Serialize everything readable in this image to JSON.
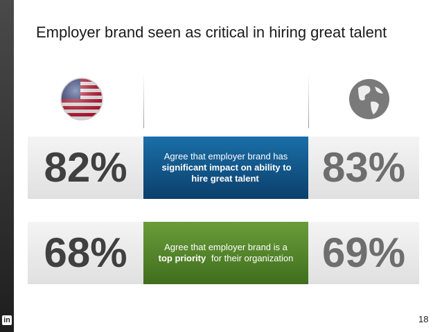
{
  "title": "Employer brand seen as critical in hiring great talent",
  "rows": [
    {
      "us": "82%",
      "global": "83%",
      "description": [
        {
          "text": "Agree that employer brand has",
          "bold": false
        },
        {
          "text": "significant impact on ability to hire great talent",
          "bold": true
        }
      ]
    },
    {
      "us": "68%",
      "global": "69%",
      "description": [
        {
          "text": "Agree that employer brand is a",
          "bold": false
        },
        {
          "text": "top priority",
          "bold": true
        },
        {
          "text": "for their organization",
          "bold": false
        }
      ]
    }
  ],
  "logo": "in",
  "page_number": "18"
}
